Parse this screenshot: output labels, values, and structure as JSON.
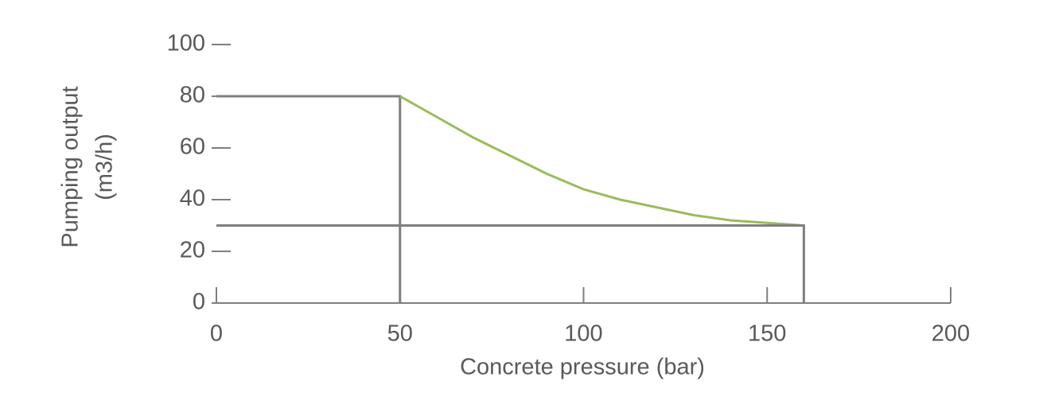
{
  "chart_data": {
    "type": "line",
    "xlabel": "Concrete pressure (bar)",
    "ylabel": [
      "Pumping output",
      "(m3/h)"
    ],
    "xlim": [
      0,
      200
    ],
    "xticks": [
      0,
      50,
      100,
      150,
      200
    ],
    "ylim": [
      0,
      100
    ],
    "yticks": [
      0,
      20,
      40,
      60,
      80,
      100
    ],
    "series": [
      {
        "color": "#7f7f7f",
        "x": [
          0,
          50,
          50
        ],
        "values": [
          80,
          80,
          0
        ]
      },
      {
        "color": "#9bbb59",
        "x": [
          50,
          60,
          70,
          80,
          90,
          100,
          110,
          120,
          130,
          140,
          150,
          160
        ],
        "values": [
          80,
          72,
          64,
          57,
          50,
          44,
          40,
          37,
          34,
          32,
          31,
          30
        ]
      },
      {
        "color": "#7f7f7f",
        "x": [
          0,
          160,
          160
        ],
        "values": [
          30,
          30,
          0
        ]
      }
    ]
  }
}
